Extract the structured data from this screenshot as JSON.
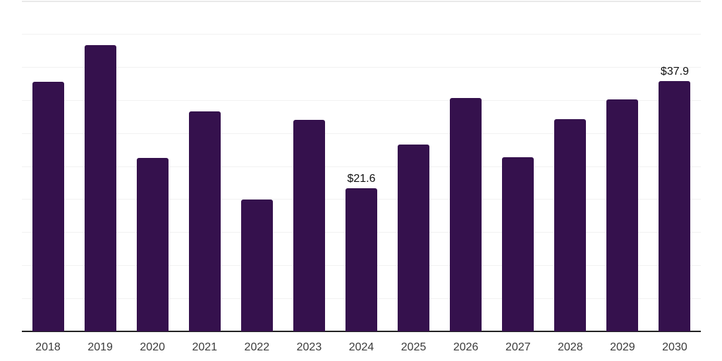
{
  "chart_data": {
    "type": "bar",
    "title": "",
    "xlabel": "",
    "ylabel": "",
    "categories": [
      "2018",
      "2019",
      "2020",
      "2021",
      "2022",
      "2023",
      "2024",
      "2025",
      "2026",
      "2027",
      "2028",
      "2029",
      "2030"
    ],
    "values": [
      37.7,
      43.3,
      26.2,
      33.3,
      19.9,
      32.0,
      21.6,
      28.2,
      35.3,
      26.3,
      32.1,
      35.1,
      37.9
    ],
    "data_labels": [
      "",
      "",
      "",
      "",
      "",
      "",
      "$21.6",
      "",
      "",
      "",
      "",
      "",
      "$37.9"
    ],
    "ylim": [
      0,
      50
    ],
    "grid_step": 5,
    "grid": true,
    "legend": false,
    "colors": {
      "bar": "#35114d",
      "axis_line": "#242424",
      "gridline": "#f2f2f2",
      "top_gridline": "#e9e9e9",
      "tick_label": "#3b3b3b",
      "data_label": "#111111",
      "background": "#ffffff"
    }
  }
}
